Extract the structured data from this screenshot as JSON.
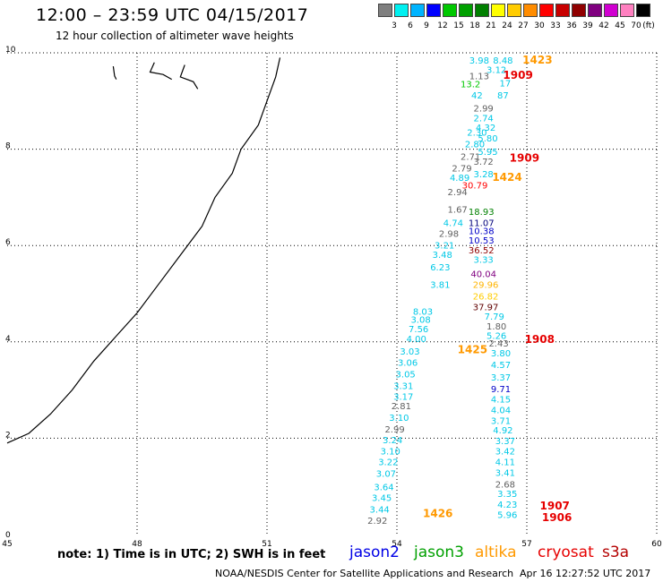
{
  "header": {
    "title": "12:00 – 23:59 UTC 04/15/2017",
    "subtitle": "12 hour collection of altimeter wave heights"
  },
  "legend": {
    "unit": "(ft)",
    "colors": [
      "#7f7f7f",
      "#00f0f0",
      "#00b4ff",
      "#0000ff",
      "#00c800",
      "#00a000",
      "#008000",
      "#ffff00",
      "#ffcc00",
      "#ff8c00",
      "#ff0000",
      "#c80000",
      "#900000",
      "#800080",
      "#d000d0",
      "#ff80c0",
      "#000000"
    ],
    "labels": [
      "3",
      "6",
      "9",
      "12",
      "15",
      "18",
      "21",
      "24",
      "27",
      "30",
      "33",
      "36",
      "39",
      "42",
      "45",
      "70"
    ]
  },
  "axes": {
    "x_ticks": [
      "45",
      "48",
      "51",
      "54",
      "57",
      "60"
    ],
    "y_ticks": [
      "0",
      "2",
      "4",
      "6",
      "8",
      "10"
    ]
  },
  "map_data": {
    "lon_range": [
      45,
      60
    ],
    "lat_range": [
      0,
      10
    ],
    "coastline": [
      [
        45.0,
        1.9
      ],
      [
        45.5,
        2.1
      ],
      [
        46.0,
        2.5
      ],
      [
        46.5,
        3.0
      ],
      [
        47.0,
        3.6
      ],
      [
        47.5,
        4.1
      ],
      [
        48.0,
        4.6
      ],
      [
        48.5,
        5.2
      ],
      [
        49.0,
        5.8
      ],
      [
        49.5,
        6.4
      ],
      [
        49.8,
        7.0
      ],
      [
        50.2,
        7.5
      ],
      [
        50.4,
        8.0
      ],
      [
        50.8,
        8.5
      ],
      [
        51.0,
        9.0
      ],
      [
        51.2,
        9.5
      ],
      [
        51.3,
        9.9
      ]
    ],
    "islands": [
      [
        [
          47.45,
          9.72
        ],
        [
          47.48,
          9.52
        ],
        [
          47.52,
          9.45
        ]
      ],
      [
        [
          48.4,
          9.8
        ],
        [
          48.3,
          9.6
        ],
        [
          48.6,
          9.55
        ],
        [
          48.8,
          9.45
        ]
      ],
      [
        [
          49.1,
          9.75
        ],
        [
          49.0,
          9.5
        ],
        [
          49.3,
          9.4
        ],
        [
          49.4,
          9.25
        ]
      ]
    ],
    "wave_labels": [
      {
        "text": "3.98",
        "lon": 55.9,
        "lat": 9.78,
        "color": "#00c8e6"
      },
      {
        "text": "8.48",
        "lon": 56.45,
        "lat": 9.78,
        "color": "#00c8e6"
      },
      {
        "text": "3.12",
        "lon": 56.3,
        "lat": 9.58,
        "color": "#00c8e6"
      },
      {
        "text": "1.13",
        "lon": 55.9,
        "lat": 9.45,
        "color": "#606060"
      },
      {
        "text": "13.2",
        "lon": 55.7,
        "lat": 9.28,
        "color": "#00c800"
      },
      {
        "text": "17",
        "lon": 56.5,
        "lat": 9.3,
        "color": "#00c8e6"
      },
      {
        "text": "42",
        "lon": 55.85,
        "lat": 9.05,
        "color": "#00c8e6"
      },
      {
        "text": "87",
        "lon": 56.45,
        "lat": 9.05,
        "color": "#00c8e6"
      },
      {
        "text": "2.99",
        "lon": 56.0,
        "lat": 8.78,
        "color": "#606060"
      },
      {
        "text": "2.74",
        "lon": 56.0,
        "lat": 8.58,
        "color": "#00c8e6"
      },
      {
        "text": "4.32",
        "lon": 56.05,
        "lat": 8.38,
        "color": "#00c8e6"
      },
      {
        "text": "2.30",
        "lon": 55.85,
        "lat": 8.28,
        "color": "#00c8e6"
      },
      {
        "text": "5.80",
        "lon": 56.1,
        "lat": 8.16,
        "color": "#00c8e6"
      },
      {
        "text": "2.80",
        "lon": 55.8,
        "lat": 8.04,
        "color": "#00c8e6"
      },
      {
        "text": "5.95",
        "lon": 56.1,
        "lat": 7.88,
        "color": "#00c8e6"
      },
      {
        "text": "2.71",
        "lon": 55.7,
        "lat": 7.78,
        "color": "#606060"
      },
      {
        "text": "3.72",
        "lon": 56.0,
        "lat": 7.68,
        "color": "#606060"
      },
      {
        "text": "2.79",
        "lon": 55.5,
        "lat": 7.54,
        "color": "#606060"
      },
      {
        "text": "3.28",
        "lon": 56.0,
        "lat": 7.42,
        "color": "#00c8e6"
      },
      {
        "text": "4.89",
        "lon": 55.45,
        "lat": 7.34,
        "color": "#00c8e6"
      },
      {
        "text": "30.79",
        "lon": 55.8,
        "lat": 7.18,
        "color": "#ff0000"
      },
      {
        "text": "2.94",
        "lon": 55.4,
        "lat": 7.04,
        "color": "#606060"
      },
      {
        "text": "1.67",
        "lon": 55.4,
        "lat": 6.68,
        "color": "#606060"
      },
      {
        "text": "18.93",
        "lon": 55.95,
        "lat": 6.64,
        "color": "#008000"
      },
      {
        "text": "4.74",
        "lon": 55.3,
        "lat": 6.4,
        "color": "#00c8e6"
      },
      {
        "text": "11.07",
        "lon": 55.95,
        "lat": 6.4,
        "color": "#00007a"
      },
      {
        "text": "2.98",
        "lon": 55.2,
        "lat": 6.18,
        "color": "#606060"
      },
      {
        "text": "10.38",
        "lon": 55.95,
        "lat": 6.24,
        "color": "#0000c8"
      },
      {
        "text": "10.53",
        "lon": 55.95,
        "lat": 6.04,
        "color": "#0000c8"
      },
      {
        "text": "3.21",
        "lon": 55.1,
        "lat": 5.94,
        "color": "#00c8e6"
      },
      {
        "text": "36.52",
        "lon": 55.95,
        "lat": 5.84,
        "color": "#900000"
      },
      {
        "text": "3.48",
        "lon": 55.05,
        "lat": 5.74,
        "color": "#00c8e6"
      },
      {
        "text": "3.33",
        "lon": 56.0,
        "lat": 5.64,
        "color": "#00c8e6"
      },
      {
        "text": "6.23",
        "lon": 55.0,
        "lat": 5.48,
        "color": "#00c8e6"
      },
      {
        "text": "40.04",
        "lon": 56.0,
        "lat": 5.34,
        "color": "#800080"
      },
      {
        "text": "29.96",
        "lon": 56.05,
        "lat": 5.12,
        "color": "#ffb400"
      },
      {
        "text": "3.81",
        "lon": 55.0,
        "lat": 5.12,
        "color": "#00c8e6"
      },
      {
        "text": "26.82",
        "lon": 56.05,
        "lat": 4.88,
        "color": "#ffcc00"
      },
      {
        "text": "37.97",
        "lon": 56.05,
        "lat": 4.66,
        "color": "#600000"
      },
      {
        "text": "8.03",
        "lon": 54.6,
        "lat": 4.56,
        "color": "#00c8e6"
      },
      {
        "text": "7.79",
        "lon": 56.25,
        "lat": 4.46,
        "color": "#00c8e6"
      },
      {
        "text": "3.08",
        "lon": 54.55,
        "lat": 4.4,
        "color": "#00c8e6"
      },
      {
        "text": "1.80",
        "lon": 56.3,
        "lat": 4.26,
        "color": "#606060"
      },
      {
        "text": "7.56",
        "lon": 54.5,
        "lat": 4.2,
        "color": "#00c8e6"
      },
      {
        "text": "5.26",
        "lon": 56.3,
        "lat": 4.06,
        "color": "#00c8e6"
      },
      {
        "text": "4.00",
        "lon": 54.45,
        "lat": 4.0,
        "color": "#00c8e6"
      },
      {
        "text": "2.43",
        "lon": 56.35,
        "lat": 3.9,
        "color": "#606060"
      },
      {
        "text": "3.03",
        "lon": 54.3,
        "lat": 3.74,
        "color": "#00c8e6"
      },
      {
        "text": "3.80",
        "lon": 56.4,
        "lat": 3.7,
        "color": "#00c8e6"
      },
      {
        "text": "3.06",
        "lon": 54.25,
        "lat": 3.5,
        "color": "#00c8e6"
      },
      {
        "text": "4.57",
        "lon": 56.4,
        "lat": 3.46,
        "color": "#00c8e6"
      },
      {
        "text": "3.05",
        "lon": 54.2,
        "lat": 3.26,
        "color": "#00c8e6"
      },
      {
        "text": "3.37",
        "lon": 56.4,
        "lat": 3.2,
        "color": "#00c8e6"
      },
      {
        "text": "3.31",
        "lon": 54.15,
        "lat": 3.02,
        "color": "#00c8e6"
      },
      {
        "text": "9.71",
        "lon": 56.4,
        "lat": 2.96,
        "color": "#0000c8"
      },
      {
        "text": "3.17",
        "lon": 54.15,
        "lat": 2.8,
        "color": "#00c8e6"
      },
      {
        "text": "4.15",
        "lon": 56.4,
        "lat": 2.74,
        "color": "#00c8e6"
      },
      {
        "text": "2.81",
        "lon": 54.1,
        "lat": 2.6,
        "color": "#606060"
      },
      {
        "text": "4.04",
        "lon": 56.4,
        "lat": 2.52,
        "color": "#00c8e6"
      },
      {
        "text": "3.10",
        "lon": 54.05,
        "lat": 2.36,
        "color": "#00c8e6"
      },
      {
        "text": "3.71",
        "lon": 56.4,
        "lat": 2.3,
        "color": "#00c8e6"
      },
      {
        "text": "2.99",
        "lon": 53.95,
        "lat": 2.12,
        "color": "#606060"
      },
      {
        "text": "4.92",
        "lon": 56.45,
        "lat": 2.1,
        "color": "#00c8e6"
      },
      {
        "text": "3.24",
        "lon": 53.9,
        "lat": 1.9,
        "color": "#00c8e6"
      },
      {
        "text": "3.37",
        "lon": 56.5,
        "lat": 1.88,
        "color": "#00c8e6"
      },
      {
        "text": "3.10",
        "lon": 53.85,
        "lat": 1.66,
        "color": "#00c8e6"
      },
      {
        "text": "3.42",
        "lon": 56.5,
        "lat": 1.66,
        "color": "#00c8e6"
      },
      {
        "text": "3.22",
        "lon": 53.8,
        "lat": 1.44,
        "color": "#00c8e6"
      },
      {
        "text": "4.11",
        "lon": 56.5,
        "lat": 1.44,
        "color": "#00c8e6"
      },
      {
        "text": "3.07",
        "lon": 53.75,
        "lat": 1.2,
        "color": "#00c8e6"
      },
      {
        "text": "3.41",
        "lon": 56.5,
        "lat": 1.22,
        "color": "#00c8e6"
      },
      {
        "text": "2.68",
        "lon": 56.5,
        "lat": 0.98,
        "color": "#606060"
      },
      {
        "text": "3.64",
        "lon": 53.7,
        "lat": 0.92,
        "color": "#00c8e6"
      },
      {
        "text": "3.35",
        "lon": 56.55,
        "lat": 0.78,
        "color": "#00c8e6"
      },
      {
        "text": "3.45",
        "lon": 53.65,
        "lat": 0.7,
        "color": "#00c8e6"
      },
      {
        "text": "4.23",
        "lon": 56.55,
        "lat": 0.56,
        "color": "#00c8e6"
      },
      {
        "text": "3.44",
        "lon": 53.6,
        "lat": 0.46,
        "color": "#00c8e6"
      },
      {
        "text": "5.96",
        "lon": 56.55,
        "lat": 0.34,
        "color": "#00c8e6"
      },
      {
        "text": "2.92",
        "lon": 53.55,
        "lat": 0.22,
        "color": "#606060"
      }
    ],
    "time_labels": [
      {
        "text": "1423",
        "lon": 56.9,
        "lat": 9.78,
        "color": "#ff9900"
      },
      {
        "text": "1909",
        "lon": 56.45,
        "lat": 9.46,
        "color": "#e60000"
      },
      {
        "text": "1909",
        "lon": 56.6,
        "lat": 7.74,
        "color": "#e60000"
      },
      {
        "text": "1424",
        "lon": 56.2,
        "lat": 7.34,
        "color": "#ff9900"
      },
      {
        "text": "1908",
        "lon": 56.95,
        "lat": 3.98,
        "color": "#e60000"
      },
      {
        "text": "1425",
        "lon": 55.4,
        "lat": 3.76,
        "color": "#ff9900"
      },
      {
        "text": "1426",
        "lon": 54.6,
        "lat": 0.36,
        "color": "#ff9900"
      },
      {
        "text": "1907",
        "lon": 57.3,
        "lat": 0.52,
        "color": "#e60000"
      },
      {
        "text": "1906",
        "lon": 57.35,
        "lat": 0.28,
        "color": "#e60000"
      }
    ]
  },
  "footer": {
    "note": "note: 1) Time is in UTC; 2) SWH is in feet",
    "satellites": [
      {
        "name": "jason2",
        "color": "#0000e6"
      },
      {
        "name": "jason3",
        "color": "#00a000"
      },
      {
        "name": "altika",
        "color": "#ff9900"
      },
      {
        "name": "cryosat",
        "color": "#e60000"
      },
      {
        "name": "s3a",
        "color": "#b40000"
      }
    ],
    "credit": "NOAA/NESDIS Center for Satellite Applications and Research",
    "timestamp": "Apr 16 12:27:52 UTC 2017"
  }
}
